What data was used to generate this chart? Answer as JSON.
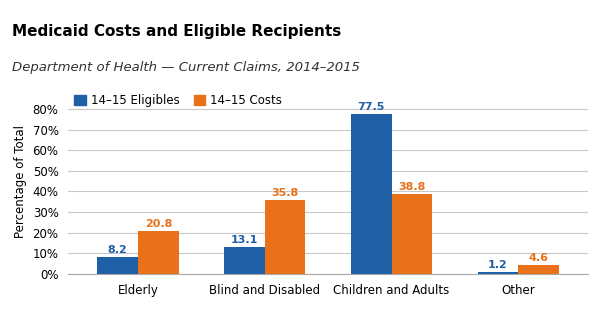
{
  "title": "Medicaid Costs and Eligible Recipients",
  "subtitle": "Department of Health — Current Claims, 2014–2015",
  "categories": [
    "Elderly",
    "Blind and Disabled",
    "Children and Adults",
    "Other"
  ],
  "series": [
    {
      "label": "14–15 Eligibles",
      "color": "#1f5fa6",
      "values": [
        8.2,
        13.1,
        77.5,
        1.2
      ]
    },
    {
      "label": "14–15 Costs",
      "color": "#e8711a",
      "values": [
        20.8,
        35.8,
        38.8,
        4.6
      ]
    }
  ],
  "ylabel": "Percentage of Total",
  "ylim": [
    0,
    90
  ],
  "yticks": [
    0,
    10,
    20,
    30,
    40,
    50,
    60,
    70,
    80
  ],
  "ytick_labels": [
    "0%",
    "10%",
    "20%",
    "30%",
    "40%",
    "50%",
    "60%",
    "70%",
    "80%"
  ],
  "header_bg_color": "#e0e0e0",
  "plot_bg_color": "#ffffff",
  "fig_bg_color": "#ffffff",
  "title_fontsize": 11,
  "subtitle_fontsize": 9.5,
  "bar_width": 0.32,
  "grid_color": "#c8c8c8",
  "label_fontsize": 8,
  "tick_fontsize": 8.5,
  "ylabel_fontsize": 8.5,
  "legend_fontsize": 8.5
}
